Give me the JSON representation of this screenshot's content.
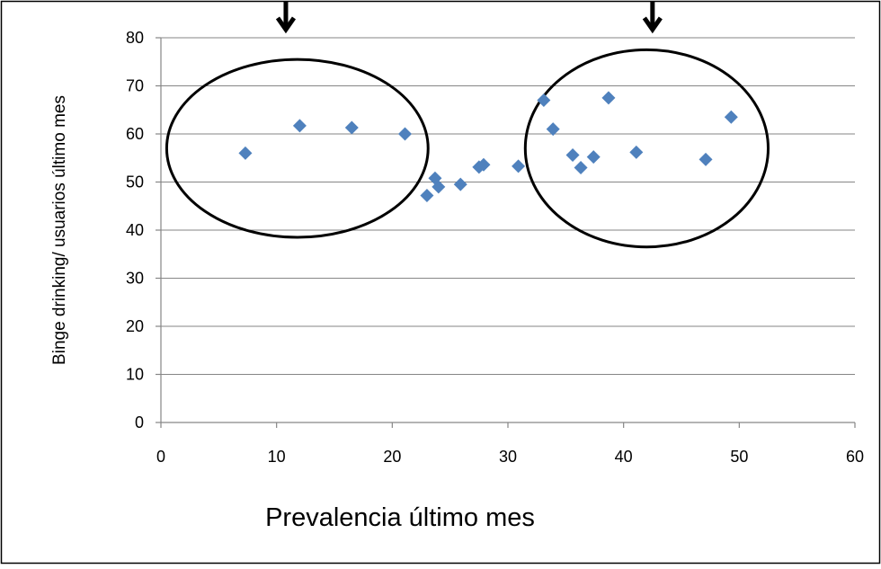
{
  "chart_data": {
    "type": "scatter",
    "title": "",
    "xlabel": "Prevalencia último mes",
    "ylabel": "Binge drinking/ usuarios último mes",
    "xlim": [
      0,
      60
    ],
    "ylim": [
      0,
      80
    ],
    "x_ticks": [
      0,
      10,
      20,
      30,
      40,
      50,
      60
    ],
    "y_ticks": [
      0,
      10,
      20,
      30,
      40,
      50,
      60,
      70,
      80
    ],
    "x_tick_labels": [
      "0",
      "10",
      "20",
      "30",
      "40",
      "50",
      "60"
    ],
    "y_tick_labels": [
      "0",
      "10",
      "20",
      "30",
      "40",
      "50",
      "60",
      "70",
      "80"
    ],
    "grid": "horizontal",
    "legend": "none",
    "marker_color": "#4F81BD",
    "points": [
      {
        "x": 7.3,
        "y": 56.0
      },
      {
        "x": 12.0,
        "y": 61.7
      },
      {
        "x": 16.5,
        "y": 61.3
      },
      {
        "x": 21.1,
        "y": 60.0
      },
      {
        "x": 23.0,
        "y": 47.2
      },
      {
        "x": 23.7,
        "y": 50.8
      },
      {
        "x": 24.0,
        "y": 49.0
      },
      {
        "x": 25.9,
        "y": 49.5
      },
      {
        "x": 27.5,
        "y": 53.1
      },
      {
        "x": 27.9,
        "y": 53.6
      },
      {
        "x": 30.9,
        "y": 53.3
      },
      {
        "x": 33.1,
        "y": 67.0
      },
      {
        "x": 33.9,
        "y": 61.0
      },
      {
        "x": 35.6,
        "y": 55.6
      },
      {
        "x": 36.3,
        "y": 53.0
      },
      {
        "x": 37.4,
        "y": 55.2
      },
      {
        "x": 38.7,
        "y": 67.5
      },
      {
        "x": 41.1,
        "y": 56.2
      },
      {
        "x": 47.1,
        "y": 54.7
      },
      {
        "x": 49.3,
        "y": 63.5
      }
    ],
    "annotations": [
      {
        "type": "ellipse",
        "cx": 11.8,
        "cy": 57.0,
        "rx": 11.3,
        "ry": 18.5
      },
      {
        "type": "ellipse",
        "cx": 42.0,
        "cy": 57.0,
        "rx": 10.5,
        "ry": 20.5
      },
      {
        "type": "arrow-down",
        "x": 10.8,
        "y_from": 87.5,
        "y_to": 81.7
      },
      {
        "type": "arrow-down",
        "x": 42.5,
        "y_from": 87.5,
        "y_to": 81.7
      }
    ]
  }
}
